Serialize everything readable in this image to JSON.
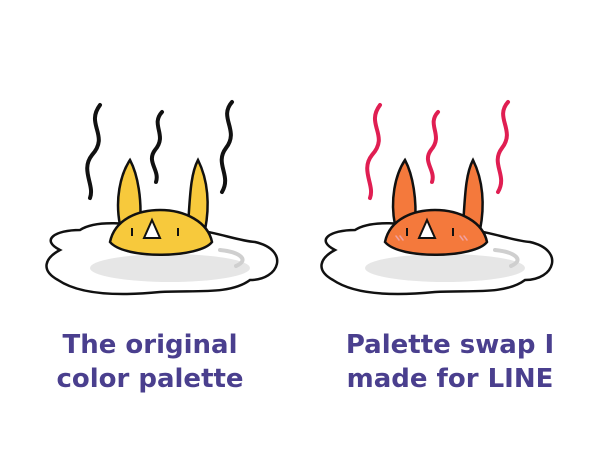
{
  "panels": [
    {
      "caption_lines": [
        "The original",
        "color palette"
      ],
      "colors": {
        "yolk": "#f7c93c",
        "yolk_shade": "#f1b52a",
        "steam": "#111111",
        "cheek": "#f7c93c"
      }
    },
    {
      "caption_lines": [
        "Palette swap I",
        "made for LINE"
      ],
      "colors": {
        "yolk": "#f4793c",
        "yolk_shade": "#ee6a30",
        "steam": "#e01e52",
        "cheek": "#f0a0a0"
      }
    }
  ],
  "caption_color": "#4a3f8e"
}
